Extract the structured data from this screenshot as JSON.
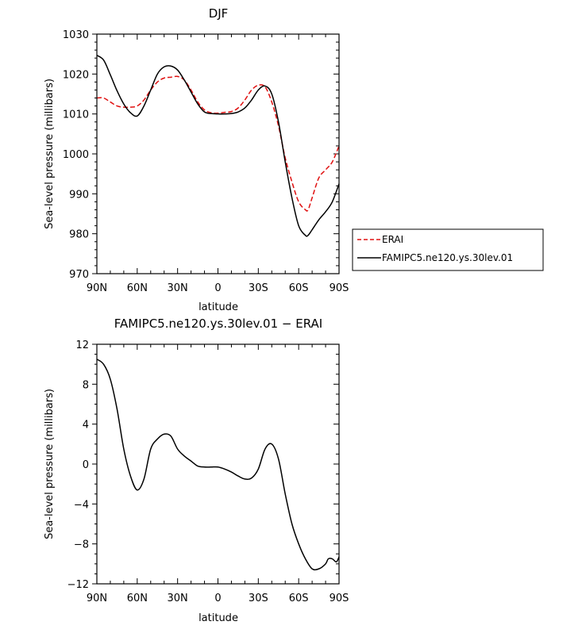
{
  "chart_data": [
    {
      "type": "line",
      "title": "DJF",
      "xlabel": "latitude",
      "ylabel": "Sea-level pressure (millibars)",
      "xticks": [
        "90N",
        "60N",
        "30N",
        "0",
        "30S",
        "60S",
        "90S"
      ],
      "yticks": [
        "970",
        "980",
        "990",
        "1000",
        "1010",
        "1020",
        "1030"
      ],
      "xlim": [
        90,
        -90
      ],
      "ylim": [
        970,
        1030
      ],
      "legend_position": "right",
      "series": [
        {
          "name": "ERAI",
          "color": "#e01010",
          "style": "dashed",
          "x": [
            90,
            85,
            80,
            75,
            70,
            65,
            60,
            55,
            50,
            45,
            40,
            35,
            30,
            25,
            20,
            15,
            10,
            5,
            0,
            -5,
            -10,
            -15,
            -20,
            -25,
            -30,
            -35,
            -40,
            -45,
            -50,
            -55,
            -60,
            -65,
            -67,
            -70,
            -75,
            -80,
            -85,
            -90
          ],
          "values": [
            1014,
            1014,
            1013,
            1012,
            1011.7,
            1011.7,
            1012,
            1013.5,
            1016,
            1018,
            1019,
            1019.2,
            1019.4,
            1018.5,
            1016,
            1013,
            1011,
            1010.3,
            1010.2,
            1010.4,
            1010.6,
            1011.5,
            1013.5,
            1016,
            1017.2,
            1016.8,
            1013,
            1007,
            999,
            993,
            988,
            986,
            986,
            989,
            994,
            996,
            998,
            1002
          ]
        },
        {
          "name": "FAMIPC5.ne120.ys.30lev.01",
          "color": "#000000",
          "style": "solid",
          "x": [
            90,
            85,
            80,
            75,
            70,
            65,
            60,
            55,
            50,
            45,
            40,
            35,
            30,
            25,
            20,
            15,
            10,
            5,
            0,
            -5,
            -10,
            -15,
            -20,
            -25,
            -30,
            -35,
            -40,
            -45,
            -50,
            -55,
            -60,
            -65,
            -67,
            -70,
            -75,
            -80,
            -85,
            -90
          ],
          "values": [
            1024.7,
            1023.5,
            1019.8,
            1015.8,
            1012.5,
            1010.3,
            1009.5,
            1012,
            1016,
            1020,
            1021.8,
            1022,
            1021,
            1018.5,
            1015.5,
            1012.5,
            1010.5,
            1010.1,
            1010,
            1010,
            1010.1,
            1010.5,
            1011.5,
            1013.5,
            1016,
            1017,
            1015,
            1008,
            998,
            989,
            982,
            979.6,
            979.6,
            981,
            983.5,
            985.5,
            988,
            992.5
          ]
        }
      ]
    },
    {
      "type": "line",
      "title": "FAMIPC5.ne120.ys.30lev.01 − ERAI",
      "xlabel": "latitude",
      "ylabel": "Sea-level pressure (millibars)",
      "xticks": [
        "90N",
        "60N",
        "30N",
        "0",
        "30S",
        "60S",
        "90S"
      ],
      "yticks": [
        "−12",
        "−8",
        "−4",
        "0",
        "4",
        "8",
        "12"
      ],
      "xlim": [
        90,
        -90
      ],
      "ylim": [
        -12,
        12
      ],
      "series": [
        {
          "color": "#000000",
          "style": "solid",
          "x": [
            90,
            85,
            80,
            75,
            70,
            65,
            60,
            55,
            50,
            45,
            40,
            35,
            30,
            25,
            20,
            15,
            10,
            5,
            0,
            -5,
            -10,
            -15,
            -20,
            -25,
            -30,
            -35,
            -40,
            -45,
            -50,
            -55,
            -60,
            -65,
            -70,
            -75,
            -80,
            -82,
            -85,
            -88,
            -90
          ],
          "values": [
            10.5,
            10,
            8.5,
            5.5,
            1.5,
            -1.2,
            -2.6,
            -1.5,
            1.5,
            2.5,
            3,
            2.8,
            1.5,
            0.8,
            0.3,
            -0.2,
            -0.3,
            -0.3,
            -0.3,
            -0.5,
            -0.8,
            -1.2,
            -1.5,
            -1.4,
            -0.5,
            1.5,
            2,
            0.5,
            -3,
            -6,
            -8,
            -9.5,
            -10.5,
            -10.5,
            -10,
            -9.5,
            -9.5,
            -9.8,
            -9.3
          ]
        }
      ]
    }
  ]
}
